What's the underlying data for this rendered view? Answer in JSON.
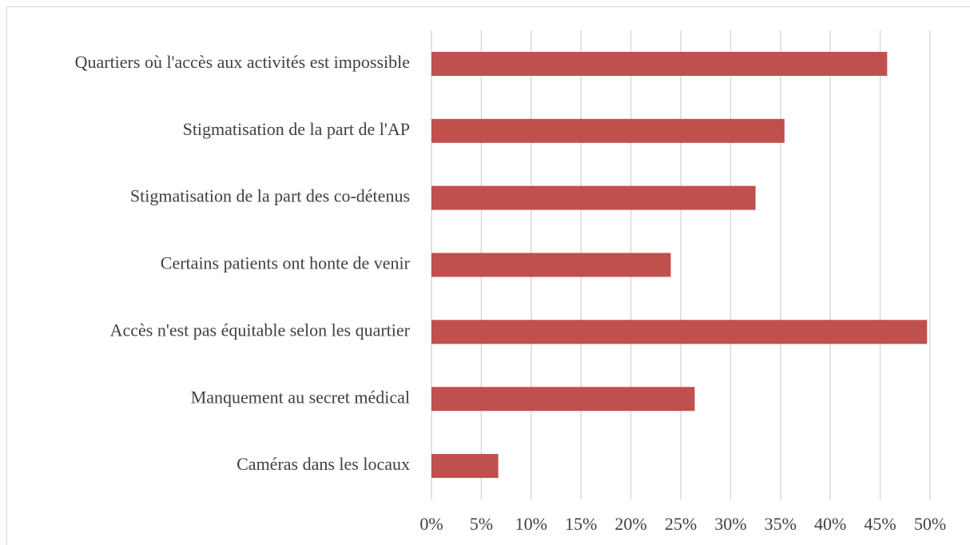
{
  "chart_data": {
    "type": "bar",
    "orientation": "horizontal",
    "categories": [
      "Quartiers où l'accès aux activités est impossible",
      "Stigmatisation de la part de l'AP",
      "Stigmatisation de la part des co-détenus",
      "Certains patients ont honte de venir",
      "Accès n'est pas équitable selon les quartier",
      "Manquement au secret médical",
      "Caméras dans les locaux"
    ],
    "values": [
      45.7,
      35.4,
      32.5,
      24.0,
      49.7,
      26.4,
      6.7
    ],
    "color": "#c0504d",
    "xlim": [
      0,
      50
    ],
    "xticks": [
      {
        "value": 0,
        "label": "0%"
      },
      {
        "value": 5,
        "label": "5%"
      },
      {
        "value": 10,
        "label": "10%"
      },
      {
        "value": 15,
        "label": "15%"
      },
      {
        "value": 20,
        "label": "20%"
      },
      {
        "value": 25,
        "label": "25%"
      },
      {
        "value": 30,
        "label": "30%"
      },
      {
        "value": 35,
        "label": "35%"
      },
      {
        "value": 40,
        "label": "40%"
      },
      {
        "value": 45,
        "label": "45%"
      },
      {
        "value": 50,
        "label": "50%"
      }
    ],
    "grid": true
  }
}
